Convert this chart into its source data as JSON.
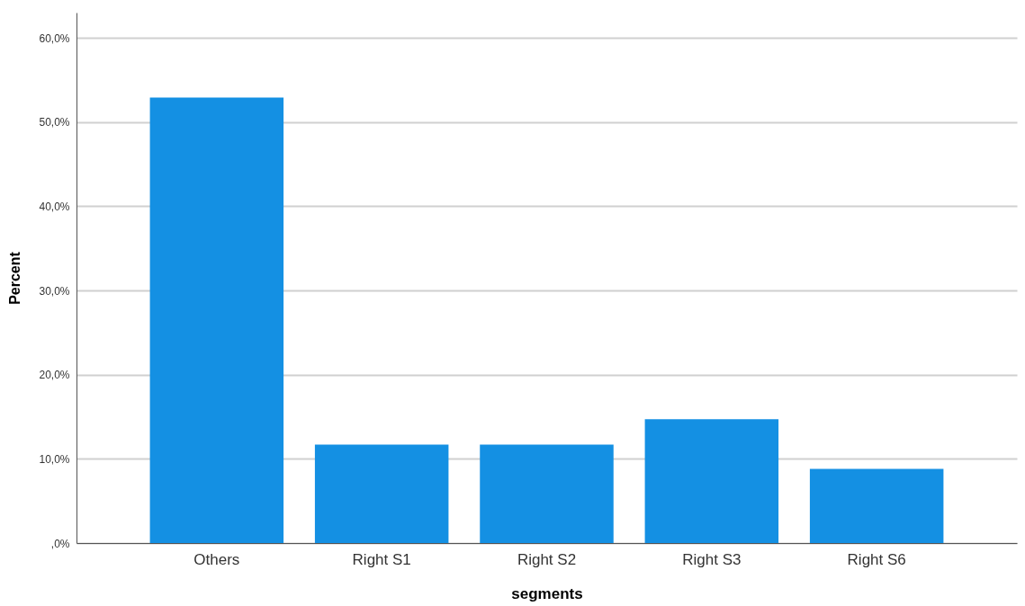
{
  "chart_data": {
    "type": "bar",
    "xlabel": "segments",
    "ylabel": "Percent",
    "categories": [
      "Others",
      "Right S1",
      "Right S2",
      "Right S3",
      "Right S6"
    ],
    "values": [
      52.9,
      11.7,
      11.7,
      14.7,
      8.8
    ],
    "color": "#1490e3",
    "ylim": [
      0,
      63
    ],
    "yticks": [
      {
        "value": 0,
        "label": ",0%"
      },
      {
        "value": 10,
        "label": "10,0%"
      },
      {
        "value": 20,
        "label": "20,0%"
      },
      {
        "value": 30,
        "label": "30,0%"
      },
      {
        "value": 40,
        "label": "40,0%"
      },
      {
        "value": 50,
        "label": "50,0%"
      },
      {
        "value": 60,
        "label": "60,0%"
      }
    ],
    "grid": "y"
  }
}
